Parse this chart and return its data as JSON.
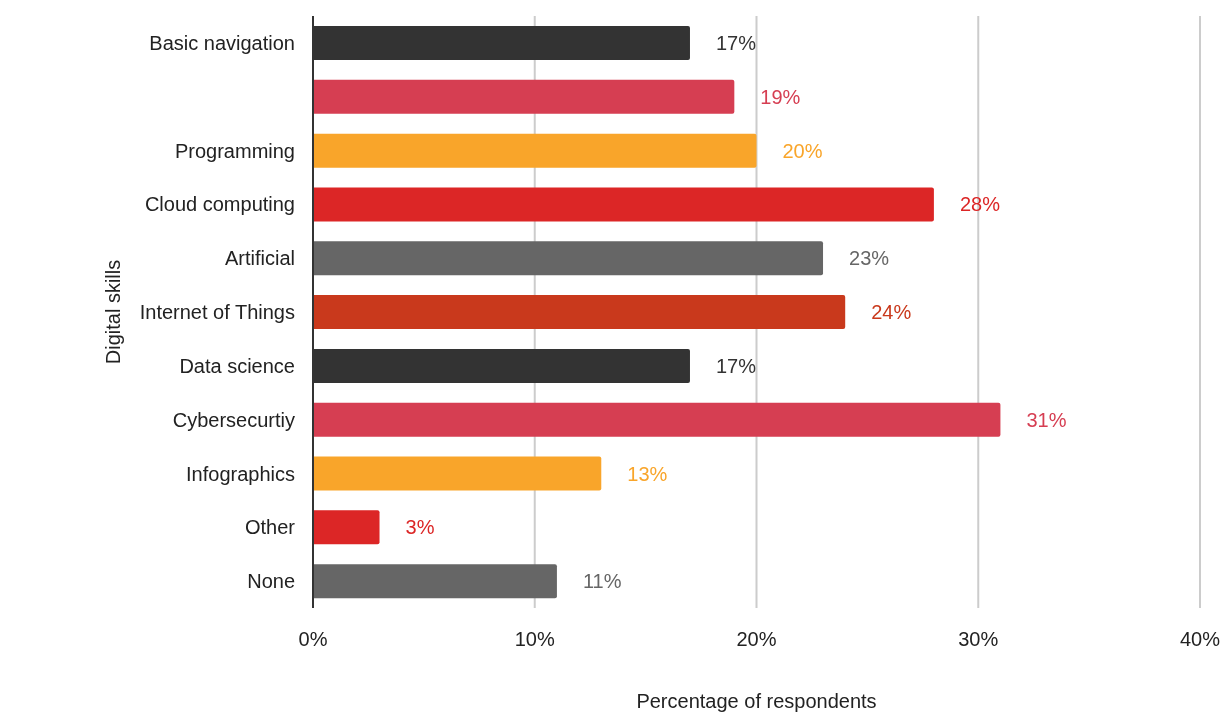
{
  "chart_data": {
    "type": "bar",
    "orientation": "horizontal",
    "xlabel": "Percentage of respondents",
    "ylabel": "Digital skills",
    "categories": [
      "Basic navigation",
      null,
      "Programming",
      "Cloud computing",
      "Artificial",
      "Internet of Things",
      "Data science",
      "Cybersecurtiy",
      "Infographics",
      "Other",
      "None"
    ],
    "values": [
      17,
      19,
      20,
      28,
      23,
      24,
      17,
      31,
      13,
      3,
      11
    ],
    "colors": [
      "#333333",
      "#d63e52",
      "#f9a52a",
      "#dc2626",
      "#666666",
      "#c9391c",
      "#333333",
      "#d63e52",
      "#f9a52a",
      "#dc2626",
      "#666666"
    ],
    "value_labels": [
      "17%",
      "19%",
      "20%",
      "28%",
      "23%",
      "24%",
      "17%",
      "31%",
      "13%",
      "3%",
      "11%"
    ],
    "xlim": [
      0,
      40
    ],
    "xticks": [
      {
        "value": 0,
        "label": "0%"
      },
      {
        "value": 10,
        "label": "10%"
      },
      {
        "value": 20,
        "label": "20%"
      },
      {
        "value": 30,
        "label": "30%"
      },
      {
        "value": 40,
        "label": "40%"
      }
    ],
    "grid": "x",
    "legend": false
  }
}
